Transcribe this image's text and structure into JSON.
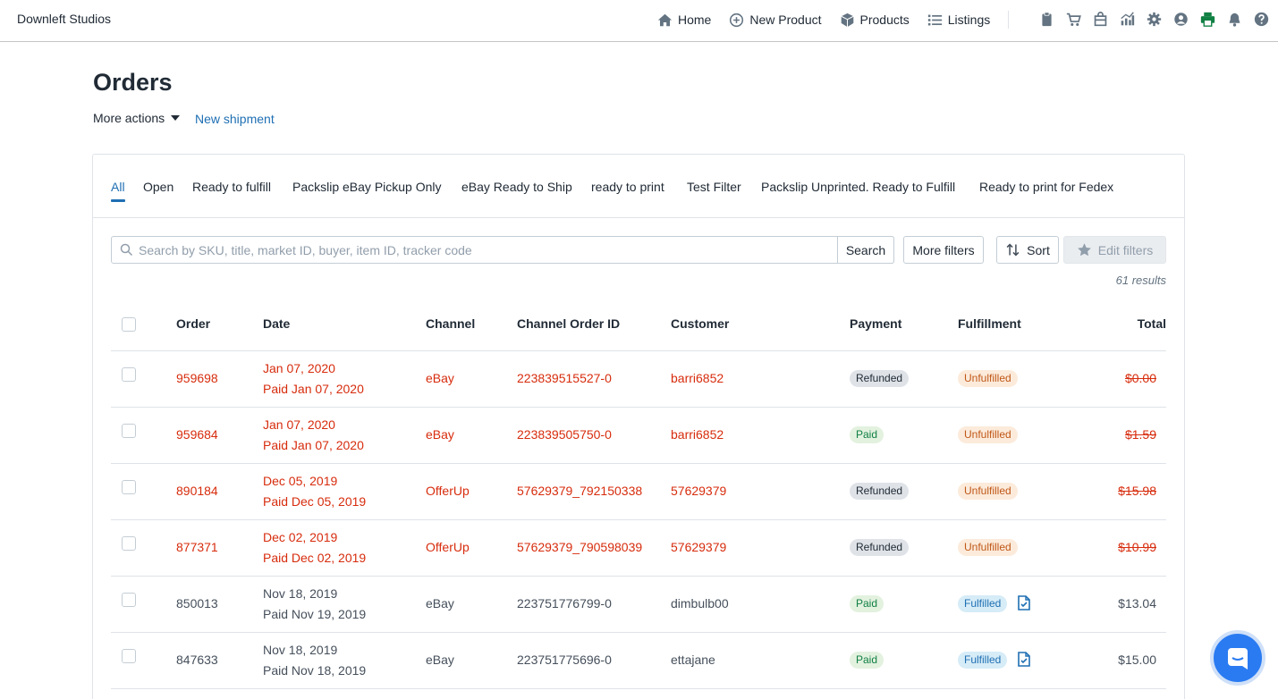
{
  "brand": "Downleft Studios",
  "nav": [
    {
      "label": "Home",
      "icon": "home-icon"
    },
    {
      "label": "New Product",
      "icon": "plus-circle-icon"
    },
    {
      "label": "Products",
      "icon": "box-icon"
    },
    {
      "label": "Listings",
      "icon": "list-icon"
    }
  ],
  "toolbar_icons": [
    "clipboard-icon",
    "cart-icon",
    "store-icon",
    "chart-icon",
    "gear-icon",
    "user-icon",
    "printer-icon",
    "bell-icon",
    "help-icon"
  ],
  "page": {
    "title": "Orders",
    "more_actions": "More actions",
    "new_shipment": "New shipment"
  },
  "tabs": [
    "All",
    "Open",
    "Ready to fulfill",
    "Packslip eBay Pickup Only",
    "eBay Ready to Ship",
    "ready to print",
    "Test Filter",
    "Packslip Unprinted. Ready to Fulfill",
    "Ready to print for Fedex"
  ],
  "search": {
    "placeholder": "Search by SKU, title, market ID, buyer, item ID, tracker code",
    "button": "Search"
  },
  "buttons": {
    "more_filters": "More filters",
    "sort": "Sort",
    "edit_filters": "Edit filters"
  },
  "results": "61 results",
  "columns": [
    "Order",
    "Date",
    "Channel",
    "Channel Order ID",
    "Customer",
    "Payment",
    "Fulfillment",
    "Total"
  ],
  "orders": [
    {
      "order": "959698",
      "date": "Jan 07, 2020",
      "paid": "Paid Jan 07, 2020",
      "channel": "eBay",
      "channel_order_id": "223839515527-0",
      "customer": "barri6852",
      "payment": "Refunded",
      "fulfillment": "Unfulfilled",
      "total": "$0.00"
    },
    {
      "order": "959684",
      "date": "Jan 07, 2020",
      "paid": "Paid Jan 07, 2020",
      "channel": "eBay",
      "channel_order_id": "223839505750-0",
      "customer": "barri6852",
      "payment": "Paid",
      "fulfillment": "Unfulfilled",
      "total": "$1.59"
    },
    {
      "order": "890184",
      "date": "Dec 05, 2019",
      "paid": "Paid Dec 05, 2019",
      "channel": "OfferUp",
      "channel_order_id": "57629379_792150338",
      "customer": "57629379",
      "payment": "Refunded",
      "fulfillment": "Unfulfilled",
      "total": "$15.98"
    },
    {
      "order": "877371",
      "date": "Dec 02, 2019",
      "paid": "Paid Dec 02, 2019",
      "channel": "OfferUp",
      "channel_order_id": "57629379_790598039",
      "customer": "57629379",
      "payment": "Refunded",
      "fulfillment": "Unfulfilled",
      "total": "$10.99"
    },
    {
      "order": "850013",
      "date": "Nov 18, 2019",
      "paid": "Paid Nov 19, 2019",
      "channel": "eBay",
      "channel_order_id": "223751776799-0",
      "customer": "dimbulb00",
      "payment": "Paid",
      "fulfillment": "Fulfilled",
      "total": "$13.04"
    },
    {
      "order": "847633",
      "date": "Nov 18, 2019",
      "paid": "Paid Nov 18, 2019",
      "channel": "eBay",
      "channel_order_id": "223751775696-0",
      "customer": "ettajane",
      "payment": "Paid",
      "fulfillment": "Fulfilled",
      "total": "$15.00"
    }
  ],
  "colors": {
    "accent": "#1f6fb3",
    "alert_red": "#d72c0d",
    "printer_green": "#108043",
    "chat_blue": "#2a7bf2"
  }
}
